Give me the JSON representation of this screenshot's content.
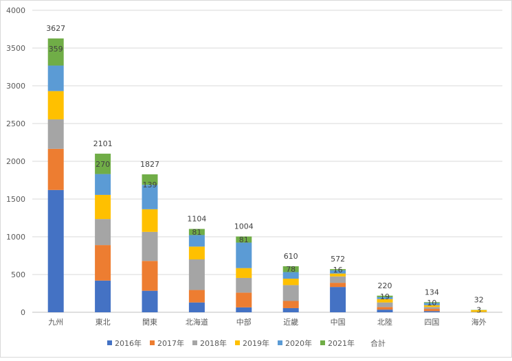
{
  "chart_data": {
    "type": "bar",
    "stacked": true,
    "categories": [
      "九州",
      "東北",
      "関東",
      "北海道",
      "中部",
      "近畿",
      "中国",
      "北陸",
      "四国",
      "海外"
    ],
    "series": [
      {
        "name": "2016年",
        "color": "#4472C4",
        "values": [
          1620,
          420,
          285,
          130,
          65,
          55,
          335,
          35,
          15,
          0
        ]
      },
      {
        "name": "2017年",
        "color": "#ED7D31",
        "values": [
          545,
          470,
          395,
          165,
          195,
          95,
          55,
          35,
          30,
          0
        ]
      },
      {
        "name": "2018年",
        "color": "#A5A5A5",
        "values": [
          390,
          345,
          385,
          405,
          195,
          210,
          85,
          60,
          25,
          5
        ]
      },
      {
        "name": "2019年",
        "color": "#FFC000",
        "values": [
          375,
          320,
          300,
          170,
          130,
          85,
          38,
          45,
          24,
          24
        ]
      },
      {
        "name": "2020年",
        "color": "#5B9BD5",
        "values": [
          338,
          276,
          323,
          153,
          338,
          87,
          43,
          26,
          30,
          0
        ]
      },
      {
        "name": "2021年",
        "color": "#70AD47",
        "values": [
          359,
          270,
          139,
          81,
          81,
          78,
          16,
          19,
          10,
          3
        ]
      }
    ],
    "totals_series_name": "合計",
    "totals": [
      3627,
      2101,
      1827,
      1104,
      1004,
      610,
      572,
      220,
      134,
      32
    ],
    "ylim": [
      0,
      4000
    ],
    "yticks": [
      0,
      500,
      1000,
      1500,
      2000,
      2500,
      3000,
      3500,
      4000
    ],
    "grid": true,
    "legend_position": "bottom",
    "title": "",
    "xlabel": "",
    "ylabel": ""
  }
}
